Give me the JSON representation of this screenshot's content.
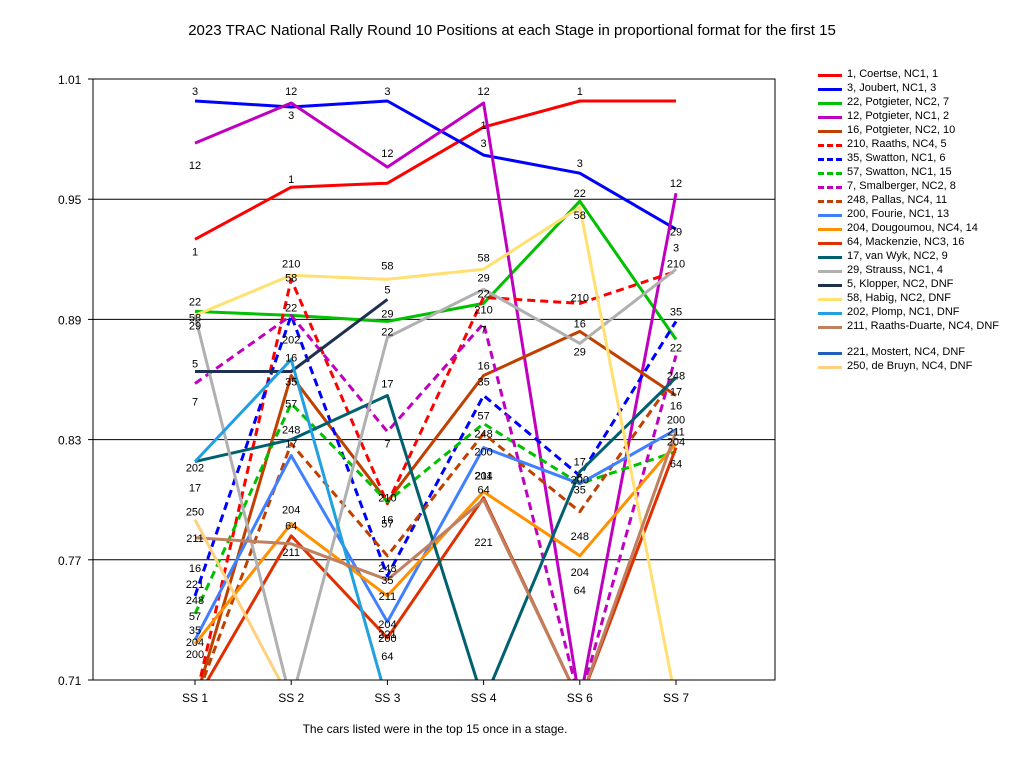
{
  "title": "2023 TRAC National Rally Round 10  Positions at each Stage in proportional format for the first 15",
  "footnote": "The cars listed were in the top 15 once in a stage.",
  "chart_data": {
    "type": "line",
    "categories": [
      "SS 1",
      "SS 2",
      "SS 3",
      "SS 4",
      "SS 6",
      "SS 7"
    ],
    "ylim": [
      0.71,
      1.01
    ],
    "ytick_labels": [
      "1.01",
      "0.95",
      "0.89",
      "0.83",
      "0.77",
      "0.71"
    ],
    "grid": true,
    "legend_position": "right",
    "series": [
      {
        "name": "1, Coertse, NC1, 1",
        "label": "1",
        "color": "#ff0000",
        "dash": false,
        "values": [
          0.93,
          0.956,
          0.958,
          0.986,
          0.999,
          0.999
        ]
      },
      {
        "name": "3, Joubert, NC1, 3",
        "label": "3",
        "color": "#0000ff",
        "dash": false,
        "values": [
          0.999,
          0.996,
          0.999,
          0.972,
          0.963,
          0.935
        ]
      },
      {
        "name": "22, Potgieter, NC2, 7",
        "label": "22",
        "color": "#00c000",
        "dash": false,
        "values": [
          0.894,
          0.892,
          0.889,
          0.898,
          0.949,
          0.88
        ]
      },
      {
        "name": "12, Potgieter, NC1, 2",
        "label": "12",
        "color": "#c000c0",
        "dash": false,
        "values": [
          0.978,
          0.998,
          0.966,
          0.998,
          0.699,
          0.953
        ]
      },
      {
        "name": "16, Potgieter, NC2, 10",
        "label": "16",
        "color": "#c04000",
        "dash": false,
        "values": [
          0.699,
          0.862,
          0.799,
          0.862,
          0.884,
          0.852
        ]
      },
      {
        "name": "210, Raaths, NC4, 5",
        "label": "210",
        "color": "#ff0000",
        "dash": true,
        "values": [
          0.699,
          0.91,
          0.798,
          0.901,
          0.898,
          0.914
        ]
      },
      {
        "name": "35, Swatton, NC1, 6",
        "label": "35",
        "color": "#0000ff",
        "dash": true,
        "values": [
          0.752,
          0.892,
          0.762,
          0.852,
          0.812,
          0.889
        ]
      },
      {
        "name": "57, Swatton, NC1, 15",
        "label": "57",
        "color": "#00c000",
        "dash": true,
        "values": [
          0.743,
          0.848,
          0.799,
          0.838,
          0.808,
          0.824
        ]
      },
      {
        "name": "7, Smalberger, NC2, 8",
        "label": "7",
        "color": "#c000c0",
        "dash": true,
        "values": [
          0.858,
          0.892,
          0.834,
          0.888,
          0.699,
          0.872
        ]
      },
      {
        "name": "248, Pallas, NC4, 11",
        "label": "248",
        "color": "#c04000",
        "dash": true,
        "values": [
          0.699,
          0.828,
          0.772,
          0.833,
          0.794,
          0.862
        ]
      },
      {
        "name": "200, Fourie, NC1, 13",
        "label": "200",
        "color": "#4080ff",
        "dash": false,
        "values": [
          0.73,
          0.822,
          0.739,
          0.826,
          0.808,
          0.835
        ]
      },
      {
        "name": "204, Dougoumou, NC4, 14",
        "label": "204",
        "color": "#ff9000",
        "dash": false,
        "values": [
          0.728,
          0.788,
          0.752,
          0.804,
          0.772,
          0.828
        ]
      },
      {
        "name": "64, Mackenzie, NC3, 16",
        "label": "64",
        "color": "#e03000",
        "dash": false,
        "values": [
          0.699,
          0.782,
          0.731,
          0.801,
          0.699,
          0.826
        ]
      },
      {
        "name": "17, van Wyk, NC2, 9",
        "label": "17",
        "color": "#006070",
        "dash": false,
        "values": [
          0.819,
          0.83,
          0.852,
          0.699,
          0.814,
          0.861
        ]
      },
      {
        "name": "29, Strauss, NC1, 4",
        "label": "29",
        "color": "#b0b0b0",
        "dash": false,
        "values": [
          0.892,
          0.699,
          0.881,
          0.905,
          0.878,
          0.915
        ]
      },
      {
        "name": "5, Klopper, NC2,  DNF",
        "label": "5",
        "color": "#203050",
        "dash": false,
        "values": [
          0.864,
          0.864,
          0.9,
          null,
          null,
          null
        ]
      },
      {
        "name": "58, Habig, NC2,  DNF",
        "label": "58",
        "color": "#ffe070",
        "dash": false,
        "values": [
          0.892,
          0.912,
          0.91,
          0.915,
          0.946,
          0.699
        ]
      },
      {
        "name": "202, Plomp, NC1,  DNF",
        "label": "202",
        "color": "#20a0e0",
        "dash": false,
        "values": [
          0.819,
          0.87,
          0.699,
          null,
          null,
          null
        ]
      },
      {
        "name": "211, Raaths-Duarte, NC4, DNF",
        "label": "211",
        "color": "#c08060",
        "dash": false,
        "values": [
          0.781,
          0.778,
          0.76,
          0.8,
          0.699,
          0.834
        ]
      },
      {
        "name": "221, Mostert, NC4,  DNF",
        "label": "221",
        "color": "#2060c0",
        "dash": false,
        "values": [
          null,
          null,
          null,
          0.772,
          null,
          null
        ]
      },
      {
        "name": "250, de Bruyn, NC4,  DNF",
        "label": "250",
        "color": "#ffd080",
        "dash": false,
        "values": [
          0.79,
          0.699,
          null,
          null,
          null,
          null
        ]
      }
    ],
    "point_labels": [
      {
        "text": "3",
        "x": "SS 1",
        "y": 1.004
      },
      {
        "text": "12",
        "x": "SS 1",
        "y": 0.967
      },
      {
        "text": "1",
        "x": "SS 1",
        "y": 0.924
      },
      {
        "text": "22",
        "x": "SS 1",
        "y": 0.899
      },
      {
        "text": "58",
        "x": "SS 1",
        "y": 0.891
      },
      {
        "text": "29",
        "x": "SS 1",
        "y": 0.887
      },
      {
        "text": "5",
        "x": "SS 1",
        "y": 0.868
      },
      {
        "text": "7",
        "x": "SS 1",
        "y": 0.849
      },
      {
        "text": "202",
        "x": "SS 1",
        "y": 0.816
      },
      {
        "text": "17",
        "x": "SS 1",
        "y": 0.806
      },
      {
        "text": "250",
        "x": "SS 1",
        "y": 0.794
      },
      {
        "text": "211",
        "x": "SS 1",
        "y": 0.781
      },
      {
        "text": "16",
        "x": "SS 1",
        "y": 0.766
      },
      {
        "text": "221",
        "x": "SS 1",
        "y": 0.758
      },
      {
        "text": "248",
        "x": "SS 1",
        "y": 0.75
      },
      {
        "text": "57",
        "x": "SS 1",
        "y": 0.742
      },
      {
        "text": "35",
        "x": "SS 1",
        "y": 0.735
      },
      {
        "text": "204",
        "x": "SS 1",
        "y": 0.729
      },
      {
        "text": "200",
        "x": "SS 1",
        "y": 0.723
      },
      {
        "text": "12",
        "x": "SS 2",
        "y": 1.004
      },
      {
        "text": "3",
        "x": "SS 2",
        "y": 0.992
      },
      {
        "text": "1",
        "x": "SS 2",
        "y": 0.96
      },
      {
        "text": "210",
        "x": "SS 2",
        "y": 0.918
      },
      {
        "text": "58",
        "x": "SS 2",
        "y": 0.911
      },
      {
        "text": "22",
        "x": "SS 2",
        "y": 0.896
      },
      {
        "text": "202",
        "x": "SS 2",
        "y": 0.88
      },
      {
        "text": "16",
        "x": "SS 2",
        "y": 0.871
      },
      {
        "text": "35",
        "x": "SS 2",
        "y": 0.859
      },
      {
        "text": "57",
        "x": "SS 2",
        "y": 0.848
      },
      {
        "text": "248",
        "x": "SS 2",
        "y": 0.835
      },
      {
        "text": "17",
        "x": "SS 2",
        "y": 0.828
      },
      {
        "text": "204",
        "x": "SS 2",
        "y": 0.795
      },
      {
        "text": "64",
        "x": "SS 2",
        "y": 0.787
      },
      {
        "text": "211",
        "x": "SS 2",
        "y": 0.774
      },
      {
        "text": "3",
        "x": "SS 3",
        "y": 1.004
      },
      {
        "text": "12",
        "x": "SS 3",
        "y": 0.973
      },
      {
        "text": "58",
        "x": "SS 3",
        "y": 0.917
      },
      {
        "text": "5",
        "x": "SS 3",
        "y": 0.905
      },
      {
        "text": "29",
        "x": "SS 3",
        "y": 0.893
      },
      {
        "text": "22",
        "x": "SS 3",
        "y": 0.884
      },
      {
        "text": "17",
        "x": "SS 3",
        "y": 0.858
      },
      {
        "text": "7",
        "x": "SS 3",
        "y": 0.828
      },
      {
        "text": "210",
        "x": "SS 3",
        "y": 0.801
      },
      {
        "text": "16",
        "x": "SS 3",
        "y": 0.79
      },
      {
        "text": "57",
        "x": "SS 3",
        "y": 0.788
      },
      {
        "text": "248",
        "x": "SS 3",
        "y": 0.766
      },
      {
        "text": "35",
        "x": "SS 3",
        "y": 0.76
      },
      {
        "text": "211",
        "x": "SS 3",
        "y": 0.752
      },
      {
        "text": "204",
        "x": "SS 3",
        "y": 0.738
      },
      {
        "text": "221",
        "x": "SS 3",
        "y": 0.733
      },
      {
        "text": "200",
        "x": "SS 3",
        "y": 0.731
      },
      {
        "text": "64",
        "x": "SS 3",
        "y": 0.722
      },
      {
        "text": "12",
        "x": "SS 4",
        "y": 1.004
      },
      {
        "text": "1",
        "x": "SS 4",
        "y": 0.987
      },
      {
        "text": "3",
        "x": "SS 4",
        "y": 0.978
      },
      {
        "text": "58",
        "x": "SS 4",
        "y": 0.921
      },
      {
        "text": "29",
        "x": "SS 4",
        "y": 0.911
      },
      {
        "text": "22",
        "x": "SS 4",
        "y": 0.903
      },
      {
        "text": "210",
        "x": "SS 4",
        "y": 0.895
      },
      {
        "text": "7",
        "x": "SS 4",
        "y": 0.885
      },
      {
        "text": "16",
        "x": "SS 4",
        "y": 0.867
      },
      {
        "text": "35",
        "x": "SS 4",
        "y": 0.859
      },
      {
        "text": "57",
        "x": "SS 4",
        "y": 0.842
      },
      {
        "text": "248",
        "x": "SS 4",
        "y": 0.833
      },
      {
        "text": "200",
        "x": "SS 4",
        "y": 0.824
      },
      {
        "text": "211",
        "x": "SS 4",
        "y": 0.812
      },
      {
        "text": "204",
        "x": "SS 4",
        "y": 0.812
      },
      {
        "text": "64",
        "x": "SS 4",
        "y": 0.805
      },
      {
        "text": "221",
        "x": "SS 4",
        "y": 0.779
      },
      {
        "text": "1",
        "x": "SS 6",
        "y": 1.004
      },
      {
        "text": "3",
        "x": "SS 6",
        "y": 0.968
      },
      {
        "text": "22",
        "x": "SS 6",
        "y": 0.953
      },
      {
        "text": "58",
        "x": "SS 6",
        "y": 0.942
      },
      {
        "text": "210",
        "x": "SS 6",
        "y": 0.901
      },
      {
        "text": "16",
        "x": "SS 6",
        "y": 0.888
      },
      {
        "text": "29",
        "x": "SS 6",
        "y": 0.874
      },
      {
        "text": "17",
        "x": "SS 6",
        "y": 0.819
      },
      {
        "text": "5",
        "x": "SS 6",
        "y": 0.811
      },
      {
        "text": "200",
        "x": "SS 6",
        "y": 0.81
      },
      {
        "text": "35",
        "x": "SS 6",
        "y": 0.805
      },
      {
        "text": "248",
        "x": "SS 6",
        "y": 0.782
      },
      {
        "text": "204",
        "x": "SS 6",
        "y": 0.764
      },
      {
        "text": "64",
        "x": "SS 6",
        "y": 0.755
      },
      {
        "text": "12",
        "x": "SS 7",
        "y": 0.958
      },
      {
        "text": "29",
        "x": "SS 7",
        "y": 0.934
      },
      {
        "text": "3",
        "x": "SS 7",
        "y": 0.926
      },
      {
        "text": "210",
        "x": "SS 7",
        "y": 0.918
      },
      {
        "text": "35",
        "x": "SS 7",
        "y": 0.894
      },
      {
        "text": "22",
        "x": "SS 7",
        "y": 0.876
      },
      {
        "text": "248",
        "x": "SS 7",
        "y": 0.862
      },
      {
        "text": "17",
        "x": "SS 7",
        "y": 0.854
      },
      {
        "text": "16",
        "x": "SS 7",
        "y": 0.847
      },
      {
        "text": "200",
        "x": "SS 7",
        "y": 0.84
      },
      {
        "text": "211",
        "x": "SS 7",
        "y": 0.834
      },
      {
        "text": "204",
        "x": "SS 7",
        "y": 0.829
      },
      {
        "text": "64",
        "x": "SS 7",
        "y": 0.818
      }
    ]
  }
}
